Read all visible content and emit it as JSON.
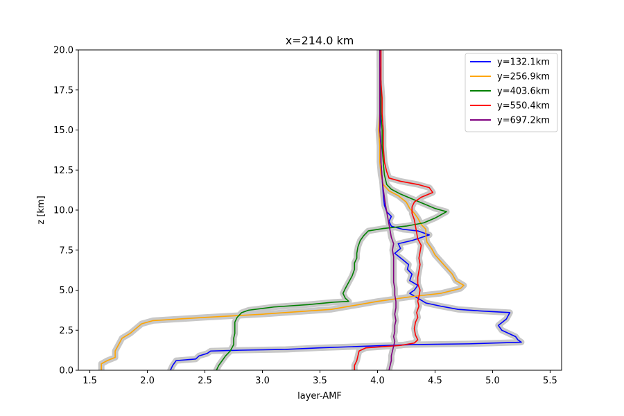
{
  "chart_data": {
    "type": "line",
    "title": "x=214.0 km",
    "xlabel": "layer-AMF",
    "ylabel": "z [km]",
    "xlim": [
      1.4,
      5.6
    ],
    "ylim": [
      0,
      20
    ],
    "xticks": [
      "1.5",
      "2.0",
      "2.5",
      "3.0",
      "3.5",
      "4.0",
      "4.5",
      "5.0",
      "5.5"
    ],
    "yticks": [
      "0.0",
      "2.5",
      "5.0",
      "7.5",
      "10.0",
      "12.5",
      "15.0",
      "17.5",
      "20.0"
    ],
    "grid": false,
    "legend_position": "top-right",
    "uncertainty_band_color": "#c8c8c8",
    "series": [
      {
        "name": "y=132.1km",
        "color": "#0000ff",
        "points": [
          [
            2.2,
            0
          ],
          [
            2.22,
            0.3
          ],
          [
            2.25,
            0.6
          ],
          [
            2.42,
            0.7
          ],
          [
            2.45,
            0.9
          ],
          [
            2.52,
            1.05
          ],
          [
            2.55,
            1.2
          ],
          [
            2.8,
            1.25
          ],
          [
            3.2,
            1.3
          ],
          [
            3.5,
            1.4
          ],
          [
            3.9,
            1.5
          ],
          [
            4.3,
            1.6
          ],
          [
            4.8,
            1.65
          ],
          [
            5.25,
            1.75
          ],
          [
            5.22,
            1.9
          ],
          [
            5.2,
            2.1
          ],
          [
            5.08,
            2.5
          ],
          [
            5.05,
            2.8
          ],
          [
            5.12,
            3.2
          ],
          [
            5.15,
            3.6
          ],
          [
            4.9,
            3.7
          ],
          [
            4.7,
            3.8
          ],
          [
            4.55,
            4.0
          ],
          [
            4.42,
            4.2
          ],
          [
            4.35,
            4.5
          ],
          [
            4.28,
            4.8
          ],
          [
            4.32,
            5.0
          ],
          [
            4.35,
            5.3
          ],
          [
            4.28,
            5.6
          ],
          [
            4.3,
            6.0
          ],
          [
            4.26,
            6.3
          ],
          [
            4.27,
            6.6
          ],
          [
            4.22,
            6.9
          ],
          [
            4.15,
            7.3
          ],
          [
            4.2,
            7.6
          ],
          [
            4.18,
            7.9
          ],
          [
            4.3,
            8.1
          ],
          [
            4.45,
            8.45
          ],
          [
            4.35,
            8.7
          ],
          [
            4.22,
            8.8
          ],
          [
            4.12,
            9.0
          ],
          [
            4.1,
            9.3
          ],
          [
            4.12,
            9.6
          ],
          [
            4.08,
            9.9
          ],
          [
            4.06,
            10.3
          ],
          [
            4.05,
            11
          ],
          [
            4.04,
            12
          ],
          [
            4.03,
            13
          ],
          [
            4.03,
            14
          ],
          [
            4.02,
            15
          ],
          [
            4.03,
            16
          ],
          [
            4.02,
            17
          ],
          [
            4.03,
            18
          ],
          [
            4.02,
            19
          ],
          [
            4.02,
            20
          ]
        ]
      },
      {
        "name": "y=256.9km",
        "color": "#ffa500",
        "points": [
          [
            1.6,
            0
          ],
          [
            1.6,
            0.4
          ],
          [
            1.65,
            0.6
          ],
          [
            1.72,
            0.8
          ],
          [
            1.72,
            1.2
          ],
          [
            1.75,
            1.6
          ],
          [
            1.78,
            2.0
          ],
          [
            1.85,
            2.3
          ],
          [
            1.9,
            2.6
          ],
          [
            1.95,
            2.9
          ],
          [
            2.05,
            3.1
          ],
          [
            2.5,
            3.3
          ],
          [
            3.0,
            3.5
          ],
          [
            3.6,
            3.8
          ],
          [
            4.0,
            4.3
          ],
          [
            4.3,
            4.6
          ],
          [
            4.55,
            4.8
          ],
          [
            4.72,
            5.1
          ],
          [
            4.75,
            5.3
          ],
          [
            4.68,
            5.6
          ],
          [
            4.65,
            6.0
          ],
          [
            4.6,
            6.4
          ],
          [
            4.55,
            6.8
          ],
          [
            4.5,
            7.2
          ],
          [
            4.47,
            7.6
          ],
          [
            4.43,
            8.0
          ],
          [
            4.42,
            8.4
          ],
          [
            4.42,
            8.8
          ],
          [
            4.38,
            9.1
          ],
          [
            4.35,
            9.5
          ],
          [
            4.32,
            9.8
          ],
          [
            4.28,
            10.1
          ],
          [
            4.25,
            10.5
          ],
          [
            4.18,
            10.9
          ],
          [
            4.1,
            11.2
          ],
          [
            4.05,
            11.6
          ],
          [
            4.03,
            12.2
          ],
          [
            4.02,
            13
          ],
          [
            4.02,
            14
          ],
          [
            4.01,
            15
          ],
          [
            4.02,
            16
          ],
          [
            4.02,
            17
          ],
          [
            4.02,
            18
          ],
          [
            4.02,
            19
          ],
          [
            4.02,
            20
          ]
        ]
      },
      {
        "name": "y=403.6km",
        "color": "#008000",
        "points": [
          [
            2.6,
            0
          ],
          [
            2.62,
            0.3
          ],
          [
            2.65,
            0.6
          ],
          [
            2.68,
            0.9
          ],
          [
            2.72,
            1.2
          ],
          [
            2.75,
            1.6
          ],
          [
            2.75,
            2.0
          ],
          [
            2.76,
            2.3
          ],
          [
            2.76,
            2.7
          ],
          [
            2.76,
            3.0
          ],
          [
            2.78,
            3.3
          ],
          [
            2.82,
            3.6
          ],
          [
            2.88,
            3.75
          ],
          [
            3.1,
            3.95
          ],
          [
            3.4,
            4.1
          ],
          [
            3.62,
            4.25
          ],
          [
            3.75,
            4.3
          ],
          [
            3.72,
            4.5
          ],
          [
            3.7,
            4.8
          ],
          [
            3.72,
            5.1
          ],
          [
            3.75,
            5.5
          ],
          [
            3.78,
            5.9
          ],
          [
            3.8,
            6.3
          ],
          [
            3.8,
            6.7
          ],
          [
            3.82,
            7.0
          ],
          [
            3.82,
            7.3
          ],
          [
            3.83,
            7.7
          ],
          [
            3.85,
            8.1
          ],
          [
            3.88,
            8.4
          ],
          [
            3.92,
            8.7
          ],
          [
            4.05,
            8.85
          ],
          [
            4.25,
            9.0
          ],
          [
            4.4,
            9.2
          ],
          [
            4.5,
            9.5
          ],
          [
            4.6,
            9.9
          ],
          [
            4.5,
            10.1
          ],
          [
            4.4,
            10.4
          ],
          [
            4.3,
            10.7
          ],
          [
            4.2,
            11.0
          ],
          [
            4.12,
            11.3
          ],
          [
            4.08,
            11.6
          ],
          [
            4.06,
            12.2
          ],
          [
            4.05,
            13
          ],
          [
            4.04,
            14
          ],
          [
            4.04,
            15
          ],
          [
            4.03,
            16
          ],
          [
            4.03,
            17
          ],
          [
            4.03,
            18
          ],
          [
            4.02,
            19
          ],
          [
            4.02,
            20
          ]
        ]
      },
      {
        "name": "y=550.4km",
        "color": "#ff0000",
        "points": [
          [
            3.8,
            0
          ],
          [
            3.8,
            0.3
          ],
          [
            3.82,
            0.6
          ],
          [
            3.83,
            0.9
          ],
          [
            3.84,
            1.2
          ],
          [
            3.9,
            1.4
          ],
          [
            4.2,
            1.55
          ],
          [
            4.32,
            1.7
          ],
          [
            4.35,
            1.9
          ],
          [
            4.33,
            2.2
          ],
          [
            4.32,
            2.6
          ],
          [
            4.33,
            3.0
          ],
          [
            4.35,
            3.3
          ],
          [
            4.34,
            3.6
          ],
          [
            4.36,
            4.0
          ],
          [
            4.35,
            4.3
          ],
          [
            4.36,
            4.6
          ],
          [
            4.37,
            5.0
          ],
          [
            4.35,
            5.4
          ],
          [
            4.35,
            5.8
          ],
          [
            4.36,
            6.2
          ],
          [
            4.37,
            6.6
          ],
          [
            4.36,
            7.0
          ],
          [
            4.37,
            7.4
          ],
          [
            4.38,
            7.8
          ],
          [
            4.35,
            8.2
          ],
          [
            4.34,
            8.6
          ],
          [
            4.33,
            9.0
          ],
          [
            4.32,
            9.4
          ],
          [
            4.3,
            9.8
          ],
          [
            4.3,
            10.2
          ],
          [
            4.32,
            10.5
          ],
          [
            4.38,
            10.8
          ],
          [
            4.48,
            11.1
          ],
          [
            4.45,
            11.4
          ],
          [
            4.35,
            11.6
          ],
          [
            4.2,
            11.8
          ],
          [
            4.1,
            12.0
          ],
          [
            4.08,
            12.4
          ],
          [
            4.06,
            13
          ],
          [
            4.05,
            14
          ],
          [
            4.05,
            15
          ],
          [
            4.04,
            16
          ],
          [
            4.04,
            17
          ],
          [
            4.03,
            18
          ],
          [
            4.03,
            19
          ],
          [
            4.03,
            20
          ]
        ]
      },
      {
        "name": "y=697.2km",
        "color": "#800080",
        "points": [
          [
            4.1,
            0
          ],
          [
            4.11,
            0.3
          ],
          [
            4.12,
            0.6
          ],
          [
            4.12,
            0.9
          ],
          [
            4.13,
            1.2
          ],
          [
            4.14,
            1.5
          ],
          [
            4.15,
            1.8
          ],
          [
            4.14,
            2.1
          ],
          [
            4.15,
            2.4
          ],
          [
            4.15,
            2.8
          ],
          [
            4.16,
            3.1
          ],
          [
            4.15,
            3.5
          ],
          [
            4.16,
            3.9
          ],
          [
            4.16,
            4.3
          ],
          [
            4.15,
            4.7
          ],
          [
            4.15,
            5.1
          ],
          [
            4.14,
            5.5
          ],
          [
            4.14,
            5.9
          ],
          [
            4.14,
            6.3
          ],
          [
            4.14,
            6.7
          ],
          [
            4.14,
            7.1
          ],
          [
            4.13,
            7.5
          ],
          [
            4.14,
            7.9
          ],
          [
            4.12,
            8.3
          ],
          [
            4.11,
            8.7
          ],
          [
            4.1,
            9.1
          ],
          [
            4.09,
            9.5
          ],
          [
            4.08,
            9.9
          ],
          [
            4.07,
            10.3
          ],
          [
            4.06,
            10.8
          ],
          [
            4.05,
            11.3
          ],
          [
            4.04,
            12.0
          ],
          [
            4.03,
            13
          ],
          [
            4.03,
            14
          ],
          [
            4.02,
            15
          ],
          [
            4.02,
            16
          ],
          [
            4.02,
            17
          ],
          [
            4.02,
            18
          ],
          [
            4.02,
            19
          ],
          [
            4.02,
            20
          ]
        ]
      }
    ]
  }
}
